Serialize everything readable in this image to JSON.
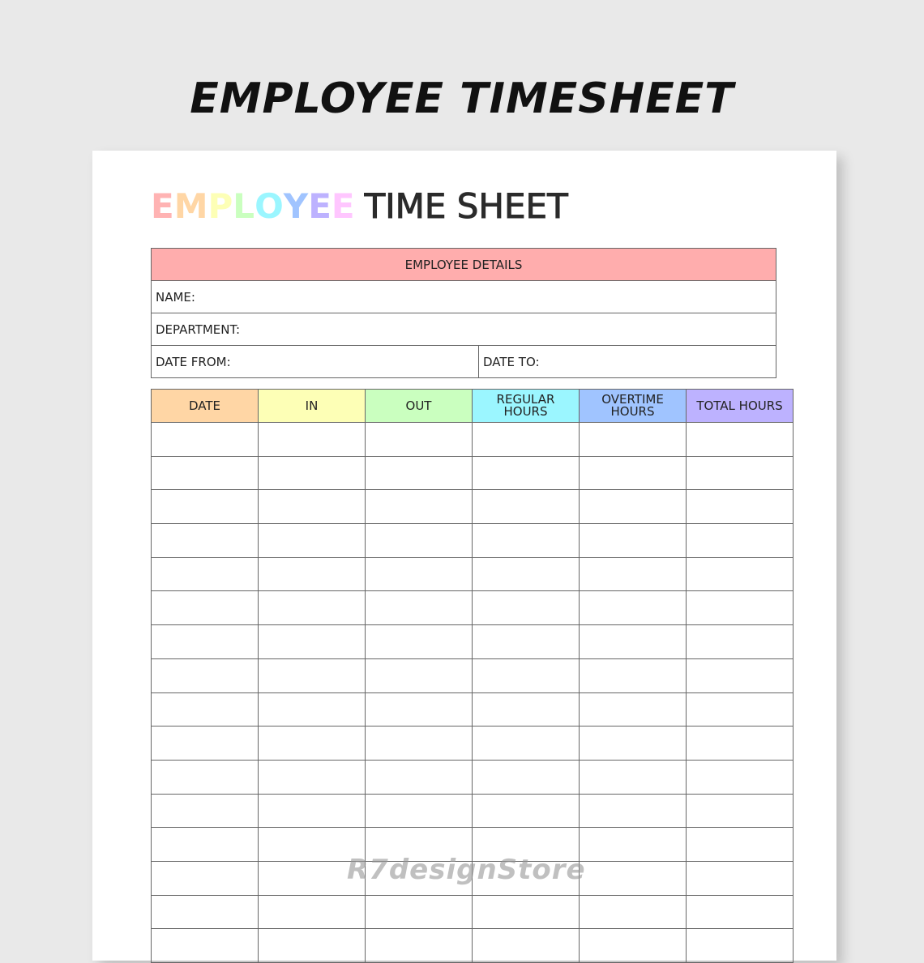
{
  "banner": "EMPLOYEE TIMESHEET",
  "title": {
    "colored_word": "EMPLOYEE",
    "letter_colors": [
      "#ffb3b3",
      "#ffd6a5",
      "#fdffb6",
      "#caffbf",
      "#9bf6ff",
      "#a0c4ff",
      "#bdb2ff",
      "#ffc6ff"
    ],
    "rest": "TIME SHEET"
  },
  "details": {
    "header": "EMPLOYEE DETAILS",
    "header_color": "#ffadad",
    "name": "NAME:",
    "department": "DEPARTMENT:",
    "date_from": "DATE FROM:",
    "date_to": "DATE TO:"
  },
  "table": {
    "columns": [
      {
        "label": "DATE",
        "color": "#ffd6a5"
      },
      {
        "label": "IN",
        "color": "#fdffb6"
      },
      {
        "label": "OUT",
        "color": "#caffbf"
      },
      {
        "label": "REGULAR HOURS",
        "color": "#9bf6ff"
      },
      {
        "label": "OVERTIME HOURS",
        "color": "#a0c4ff"
      },
      {
        "label": "TOTAL HOURS",
        "color": "#bdb2ff"
      }
    ],
    "visible_rows": 16
  },
  "watermark": "R7designStore"
}
